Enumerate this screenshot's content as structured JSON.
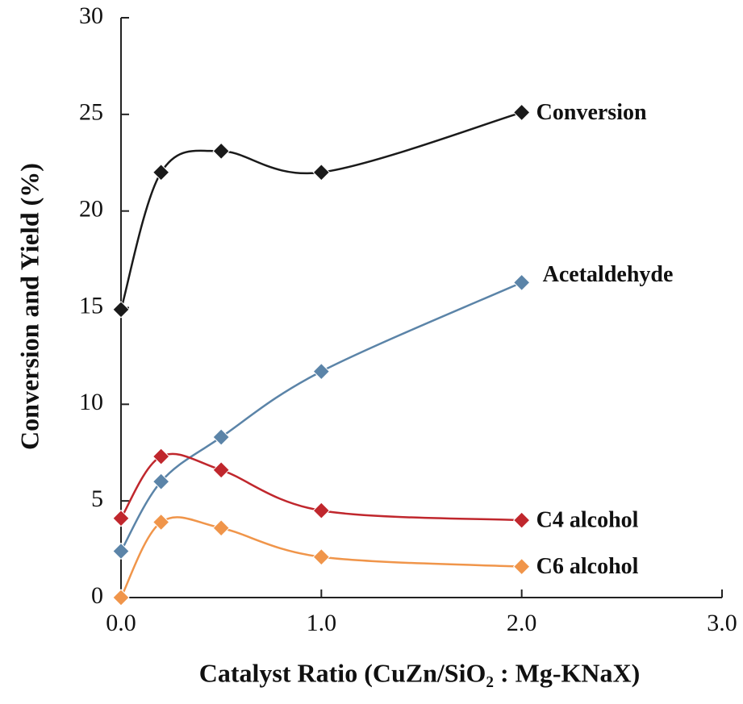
{
  "chart_data": {
    "type": "line",
    "x_label": "Catalyst Ratio (CuZn/SiO₂ : Mg-KNaX)",
    "y_label": "Conversion and Yield (%)",
    "x": [
      0,
      0.2,
      0.5,
      1.0,
      2.0
    ],
    "series": [
      {
        "name": "Conversion",
        "color": "#1a1a1a",
        "values": [
          14.9,
          22.0,
          23.1,
          22.0,
          25.1
        ]
      },
      {
        "name": "Acetaldehyde",
        "color": "#5b84a8",
        "values": [
          2.4,
          6.0,
          8.3,
          11.7,
          16.3
        ]
      },
      {
        "name": "C4 alcohol",
        "color": "#c0272d",
        "values": [
          4.1,
          7.3,
          6.6,
          4.5,
          4.0
        ]
      },
      {
        "name": "C6 alcohol",
        "color": "#f0954a",
        "values": [
          0,
          3.9,
          3.6,
          2.1,
          1.6
        ]
      }
    ],
    "xlim": [
      0,
      3.0
    ],
    "xticks": [
      {
        "value": 0,
        "label": "0.0"
      },
      {
        "value": 1.0,
        "label": "1.0"
      },
      {
        "value": 2.0,
        "label": "2.0"
      },
      {
        "value": 3.0,
        "label": "3.0"
      }
    ],
    "ylim": [
      0,
      30
    ],
    "yticks": [
      0,
      5,
      10,
      15,
      20,
      25,
      30
    ],
    "grid": false
  }
}
